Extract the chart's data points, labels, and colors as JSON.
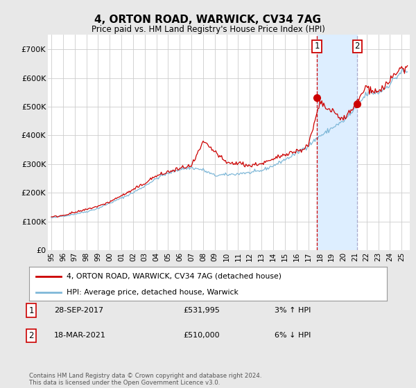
{
  "title": "4, ORTON ROAD, WARWICK, CV34 7AG",
  "subtitle": "Price paid vs. HM Land Registry's House Price Index (HPI)",
  "ylabel_ticks": [
    "£0",
    "£100K",
    "£200K",
    "£300K",
    "£400K",
    "£500K",
    "£600K",
    "£700K"
  ],
  "ytick_values": [
    0,
    100000,
    200000,
    300000,
    400000,
    500000,
    600000,
    700000
  ],
  "ylim": [
    0,
    750000
  ],
  "background_color": "#e8e8e8",
  "plot_bg_color": "#ffffff",
  "grid_color": "#cccccc",
  "hpi_color": "#7fb8d8",
  "price_color": "#cc0000",
  "shade_color": "#ddeeff",
  "marker1_year": 2017.75,
  "marker2_year": 2021.2,
  "marker1_value": 531995,
  "marker2_value": 510000,
  "legend_label1": "4, ORTON ROAD, WARWICK, CV34 7AG (detached house)",
  "legend_label2": "HPI: Average price, detached house, Warwick",
  "table_row1": [
    "1",
    "28-SEP-2017",
    "£531,995",
    "3% ↑ HPI"
  ],
  "table_row2": [
    "2",
    "18-MAR-2021",
    "£510,000",
    "6% ↓ HPI"
  ],
  "footer": "Contains HM Land Registry data © Crown copyright and database right 2024.\nThis data is licensed under the Open Government Licence v3.0.",
  "x_start": 1995.0,
  "x_end": 2025.5,
  "x_tick_years": [
    1995,
    1996,
    1997,
    1998,
    1999,
    2000,
    2001,
    2002,
    2003,
    2004,
    2005,
    2006,
    2007,
    2008,
    2009,
    2010,
    2011,
    2012,
    2013,
    2014,
    2015,
    2016,
    2017,
    2018,
    2019,
    2020,
    2021,
    2022,
    2023,
    2024,
    2025
  ]
}
